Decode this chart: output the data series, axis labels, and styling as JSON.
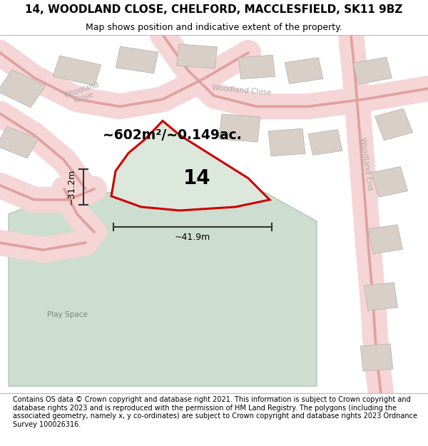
{
  "title": "14, WOODLAND CLOSE, CHELFORD, MACCLESFIELD, SK11 9BZ",
  "subtitle": "Map shows position and indicative extent of the property.",
  "footer": "Contains OS data © Crown copyright and database right 2021. This information is subject to Crown copyright and database rights 2023 and is reproduced with the permission of HM Land Registry. The polygons (including the associated geometry, namely x, y co-ordinates) are subject to Crown copyright and database rights 2023 Ordnance Survey 100026316.",
  "map_bg": "#f2ede8",
  "road_color": "#f5d5d5",
  "road_line_color": "#e0a0a0",
  "building_color": "#d8d0c8",
  "building_edge_color": "#bbb3ab",
  "green_area_color": "#cdddd0",
  "green_area_edge_color": "#adc4b0",
  "property_fill": "#dde8dc",
  "property_edge": "#cc0000",
  "property_linewidth": 2.2,
  "dim_color": "#333333",
  "area_label": "~602m²/~0.149ac.",
  "dim_width_label": "~41.9m",
  "dim_height_label": "~31.2m",
  "play_space_label": "Play Space",
  "title_fontsize": 11,
  "subtitle_fontsize": 9,
  "footer_fontsize": 7
}
